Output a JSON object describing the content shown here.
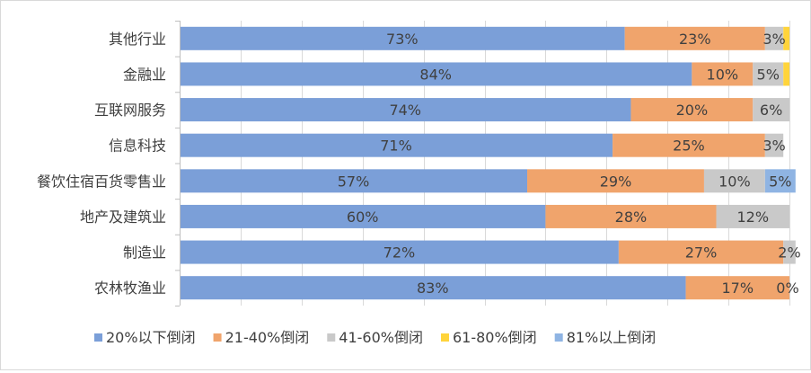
{
  "chart_data": {
    "type": "bar",
    "orientation": "horizontal",
    "stacked": true,
    "categories": [
      "其他行业",
      "金融业",
      "互联网服务",
      "信息科技",
      "餐饮住宿百货零售业",
      "地产及建筑业",
      "制造业",
      "农林牧渔业"
    ],
    "series": [
      {
        "name": "20%以下倒闭",
        "color": "#7b9fd8",
        "values": [
          73,
          84,
          74,
          71,
          57,
          60,
          72,
          83
        ],
        "labels": [
          "73%",
          "84%",
          "74%",
          "71%",
          "57%",
          "60%",
          "72%",
          "83%"
        ]
      },
      {
        "name": "21-40%倒闭",
        "color": "#f0a46c",
        "values": [
          23,
          10,
          20,
          25,
          29,
          28,
          27,
          17
        ],
        "labels": [
          "23%",
          "10%",
          "20%",
          "25%",
          "29%",
          "28%",
          "27%",
          "17%"
        ]
      },
      {
        "name": "41-60%倒闭",
        "color": "#c9c9c9",
        "values": [
          3,
          5,
          6,
          3,
          10,
          12,
          2,
          0
        ],
        "labels": [
          "3%",
          "5%",
          "6%",
          "3%",
          "10%",
          "12%",
          "2%",
          "0%"
        ]
      },
      {
        "name": "61-80%倒闭",
        "color": "#ffd43b",
        "values": [
          1,
          1,
          0,
          0,
          0,
          0,
          0,
          0
        ],
        "labels": [
          "",
          "",
          "",
          "",
          "",
          "",
          "",
          ""
        ]
      },
      {
        "name": "81%以上倒闭",
        "color": "#8fb4e3",
        "values": [
          0,
          0,
          0,
          0,
          5,
          0,
          0,
          0
        ],
        "labels": [
          "",
          "",
          "",
          "",
          "5%",
          "",
          "",
          ""
        ]
      }
    ],
    "xlim": [
      0,
      100
    ],
    "grid": true,
    "legend_position": "bottom"
  }
}
